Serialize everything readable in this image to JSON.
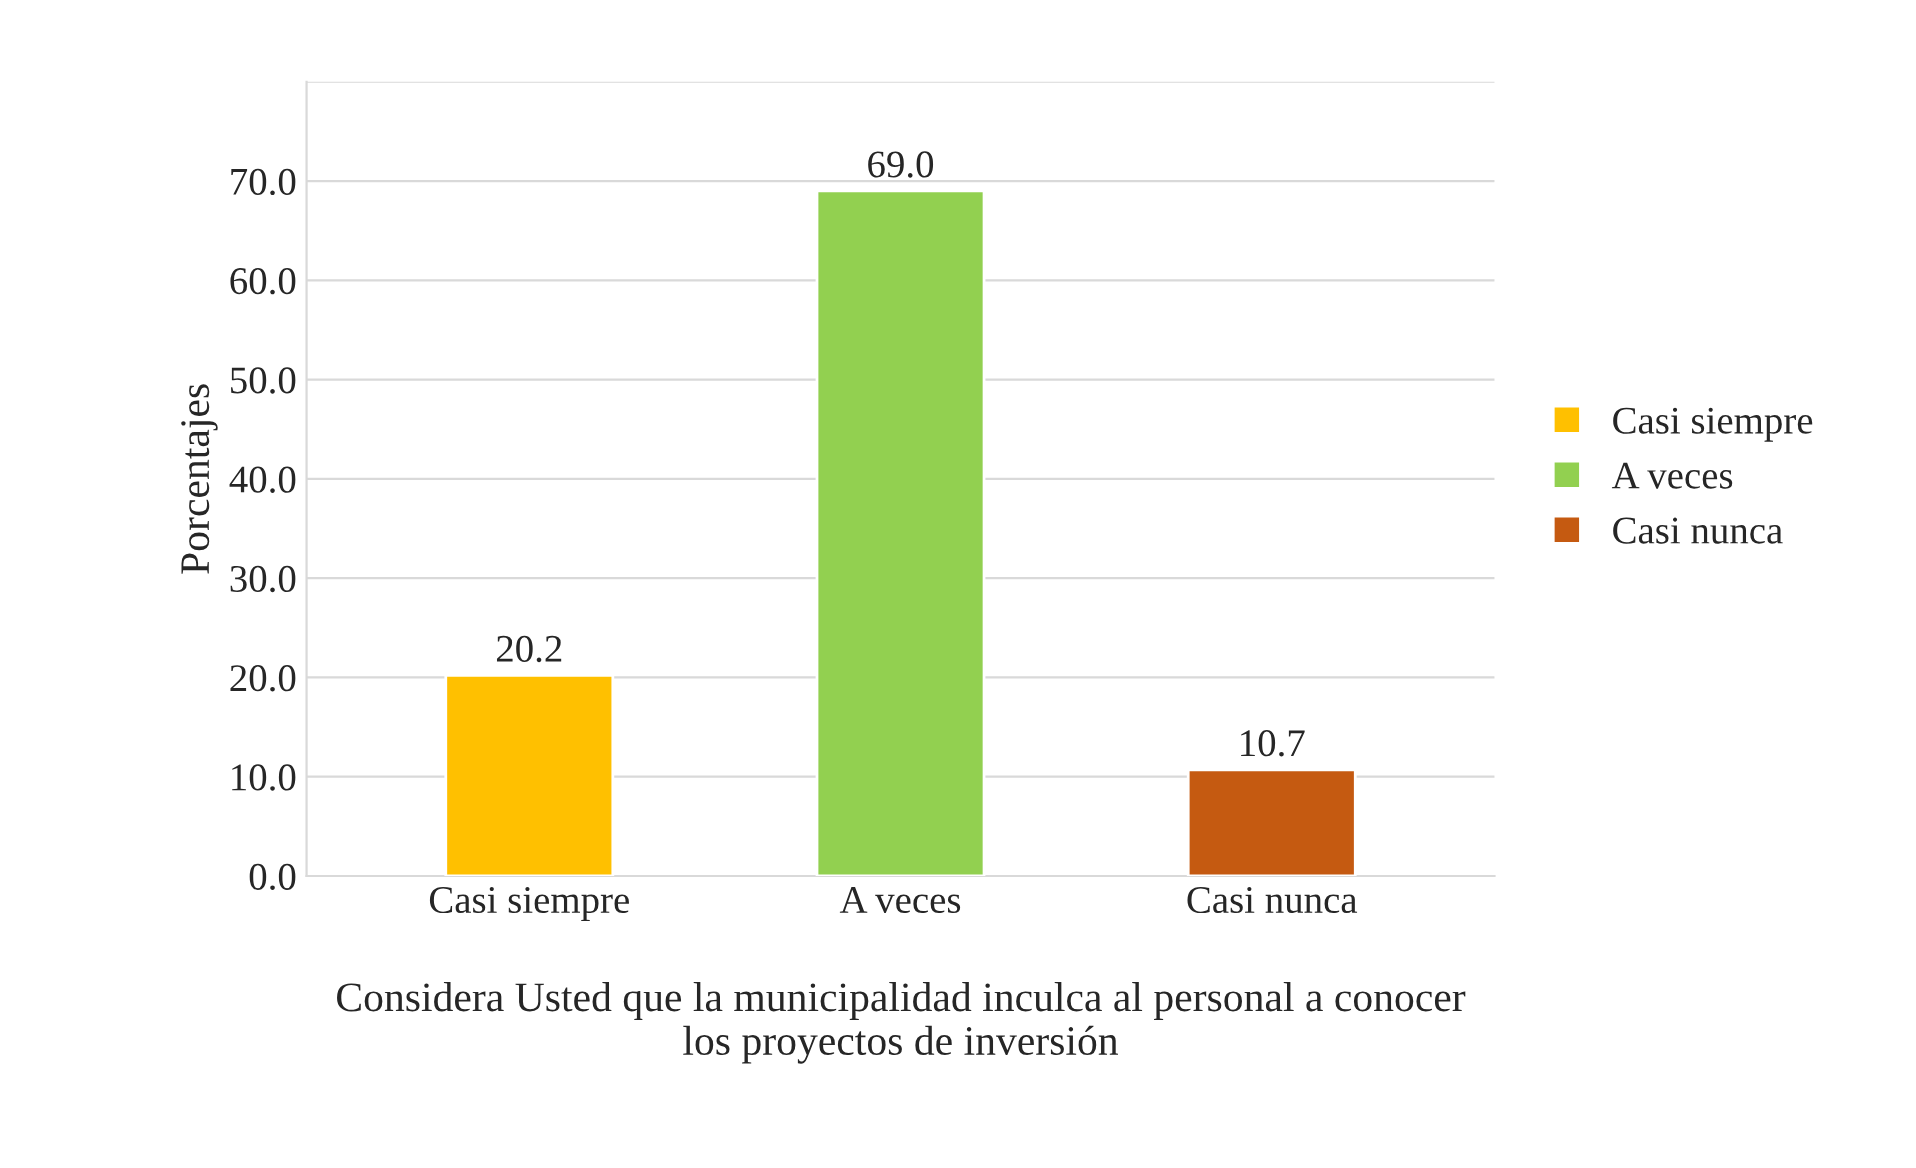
{
  "chart_data": {
    "type": "bar",
    "xlabel": "Considera Usted que la municipalidad inculca al personal a conocer\nlos proyectos de inversión",
    "ylabel": "Porcentajes",
    "categories": [
      "Casi siempre",
      "A veces",
      "Casi nunca"
    ],
    "series": [
      {
        "name": "Casi siempre",
        "color": "#ffc000",
        "values": [
          20.2,
          null,
          null
        ],
        "value_labels": [
          "20.2",
          null,
          null
        ]
      },
      {
        "name": "A veces",
        "color": "#92d050",
        "values": [
          null,
          69.0,
          null
        ],
        "value_labels": [
          null,
          "69.0",
          null
        ]
      },
      {
        "name": "Casi nunca",
        "color": "#c55a11",
        "values": [
          null,
          null,
          10.7
        ],
        "value_labels": [
          null,
          null,
          "10.7"
        ]
      }
    ],
    "ylim": [
      0,
      80
    ],
    "yticks": [
      {
        "value": 0,
        "label": "0.0"
      },
      {
        "value": 10,
        "label": "10.0"
      },
      {
        "value": 20,
        "label": "20.0"
      },
      {
        "value": 30,
        "label": "30.0"
      },
      {
        "value": 40,
        "label": "40.0"
      },
      {
        "value": 50,
        "label": "50.0"
      },
      {
        "value": 60,
        "label": "60.0"
      },
      {
        "value": 70,
        "label": "70.0"
      },
      {
        "value": 80,
        "label": null
      }
    ],
    "grid": "y",
    "legend": "right"
  }
}
